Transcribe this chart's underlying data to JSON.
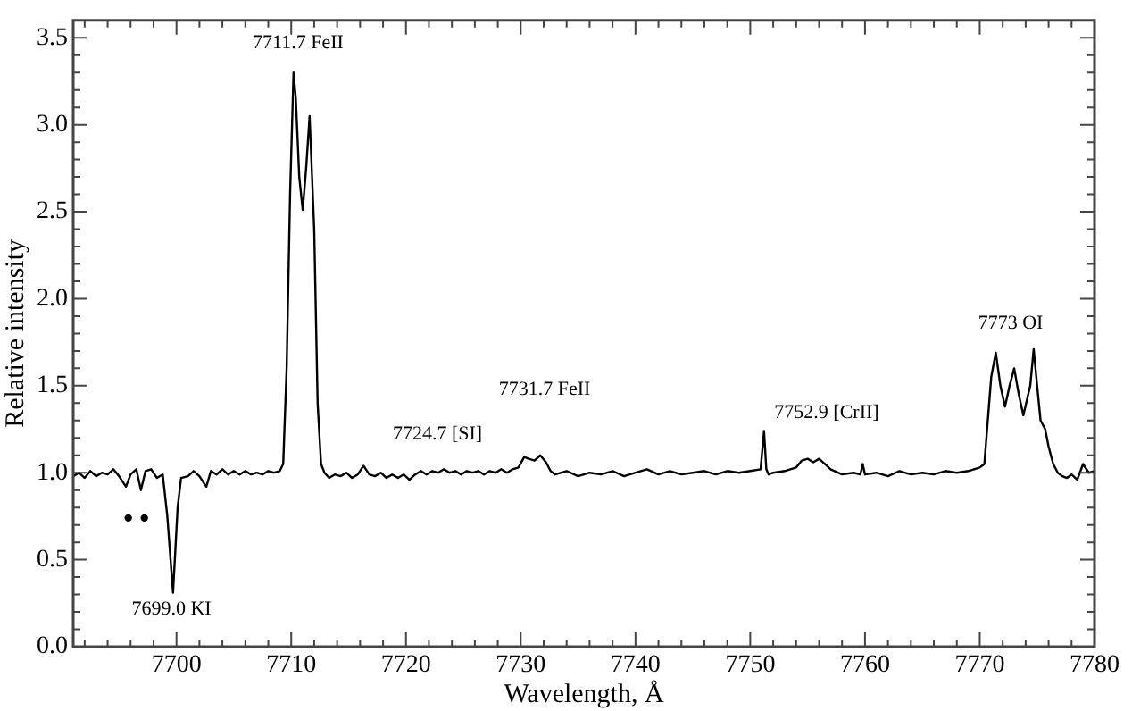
{
  "chart_data": {
    "type": "line",
    "xlabel": "Wavelength, Å",
    "ylabel": "Relative intensity",
    "xlim": [
      7691,
      7780
    ],
    "ylim": [
      0,
      3.6
    ],
    "xticks": [
      {
        "value": 7692,
        "label": null
      },
      {
        "value": 7694,
        "label": null
      },
      {
        "value": 7696,
        "label": null
      },
      {
        "value": 7698,
        "label": null
      },
      7700,
      {
        "value": 7702,
        "label": null
      },
      {
        "value": 7704,
        "label": null
      },
      {
        "value": 7706,
        "label": null
      },
      {
        "value": 7708,
        "label": null
      },
      7710,
      {
        "value": 7712,
        "label": null
      },
      {
        "value": 7714,
        "label": null
      },
      {
        "value": 7716,
        "label": null
      },
      {
        "value": 7718,
        "label": null
      },
      7720,
      {
        "value": 7722,
        "label": null
      },
      {
        "value": 7724,
        "label": null
      },
      {
        "value": 7726,
        "label": null
      },
      {
        "value": 7728,
        "label": null
      },
      7730,
      {
        "value": 7732,
        "label": null
      },
      {
        "value": 7734,
        "label": null
      },
      {
        "value": 7736,
        "label": null
      },
      {
        "value": 7738,
        "label": null
      },
      7740,
      {
        "value": 7742,
        "label": null
      },
      {
        "value": 7744,
        "label": null
      },
      {
        "value": 7746,
        "label": null
      },
      {
        "value": 7748,
        "label": null
      },
      7750,
      {
        "value": 7752,
        "label": null
      },
      {
        "value": 7754,
        "label": null
      },
      {
        "value": 7756,
        "label": null
      },
      {
        "value": 7758,
        "label": null
      },
      7760,
      {
        "value": 7762,
        "label": null
      },
      {
        "value": 7764,
        "label": null
      },
      {
        "value": 7766,
        "label": null
      },
      {
        "value": 7768,
        "label": null
      },
      7770,
      {
        "value": 7772,
        "label": null
      },
      {
        "value": 7774,
        "label": null
      },
      {
        "value": 7776,
        "label": null
      },
      {
        "value": 7778,
        "label": null
      },
      7780
    ],
    "yticks": [
      {
        "value": 0,
        "label": "0.0"
      },
      {
        "value": 0.1,
        "label": null
      },
      {
        "value": 0.2,
        "label": null
      },
      {
        "value": 0.3,
        "label": null
      },
      {
        "value": 0.4,
        "label": null
      },
      0.5,
      {
        "value": 0.6,
        "label": null
      },
      {
        "value": 0.7,
        "label": null
      },
      {
        "value": 0.8,
        "label": null
      },
      {
        "value": 0.9,
        "label": null
      },
      {
        "value": 1,
        "label": "1.0"
      },
      {
        "value": 1.1,
        "label": null
      },
      {
        "value": 1.2,
        "label": null
      },
      {
        "value": 1.3,
        "label": null
      },
      {
        "value": 1.4,
        "label": null
      },
      1.5,
      {
        "value": 1.6,
        "label": null
      },
      {
        "value": 1.7,
        "label": null
      },
      {
        "value": 1.8,
        "label": null
      },
      {
        "value": 1.9,
        "label": null
      },
      {
        "value": 2,
        "label": "2.0"
      },
      {
        "value": 2.1,
        "label": null
      },
      {
        "value": 2.2,
        "label": null
      },
      {
        "value": 2.3,
        "label": null
      },
      {
        "value": 2.4,
        "label": null
      },
      2.5,
      {
        "value": 2.6,
        "label": null
      },
      {
        "value": 2.7,
        "label": null
      },
      {
        "value": 2.8,
        "label": null
      },
      {
        "value": 2.9,
        "label": null
      },
      {
        "value": 3,
        "label": "3.0"
      },
      {
        "value": 3.1,
        "label": null
      },
      {
        "value": 3.2,
        "label": null
      },
      {
        "value": 3.3,
        "label": null
      },
      {
        "value": 3.4,
        "label": null
      },
      3.5
    ],
    "grid": false,
    "legend": false,
    "series": [
      {
        "color": "#000000",
        "marker": "none",
        "line_style": "solid",
        "x": [
          7691,
          7691.5,
          7692,
          7692.5,
          7693,
          7693.5,
          7694,
          7694.5,
          7695,
          7695.6,
          7696,
          7696.5,
          7696.9,
          7697.3,
          7697.8,
          7698.3,
          7698.8,
          7699.2,
          7699.7,
          7700.1,
          7700.4,
          7701,
          7701.5,
          7702,
          7702.6,
          7703,
          7703.5,
          7704,
          7704.5,
          7705,
          7705.5,
          7706,
          7706.5,
          7707,
          7707.5,
          7708,
          7708.5,
          7709,
          7709.3,
          7709.6,
          7709.9,
          7710.2,
          7710.4,
          7710.7,
          7711.0,
          7711.3,
          7711.6,
          7712.0,
          7712.3,
          7712.6,
          7712.9,
          7713.3,
          7713.8,
          7714.3,
          7714.8,
          7715.3,
          7715.8,
          7716.3,
          7716.8,
          7717.3,
          7717.8,
          7718.3,
          7718.8,
          7719.3,
          7719.8,
          7720.3,
          7720.8,
          7721.3,
          7721.8,
          7722.3,
          7722.8,
          7723.3,
          7723.8,
          7724.3,
          7724.8,
          7725.3,
          7725.8,
          7726.3,
          7726.8,
          7727.3,
          7727.8,
          7728.3,
          7728.8,
          7729.3,
          7729.8,
          7730.3,
          7730.7,
          7731.2,
          7731.7,
          7732.2,
          7732.6,
          7733,
          7734,
          7735,
          7736,
          7737,
          7738,
          7739,
          7740,
          7741,
          7742,
          7743,
          7744,
          7745,
          7746,
          7747,
          7748,
          7749,
          7750,
          7750.9,
          7751.2,
          7751.4,
          7751.6,
          7752,
          7753,
          7754,
          7754.5,
          7755,
          7755.5,
          7756,
          7756.5,
          7757,
          7758,
          7759,
          7759.6,
          7759.8,
          7760,
          7761,
          7762,
          7763,
          7764,
          7765,
          7766,
          7767,
          7768,
          7769,
          7770,
          7770.4,
          7770.7,
          7771.0,
          7771.4,
          7771.8,
          7772.2,
          7772.6,
          7773.0,
          7773.4,
          7773.8,
          7774.4,
          7774.7,
          7775.0,
          7775.3,
          7775.7,
          7776.0,
          7776.4,
          7776.8,
          7777.2,
          7777.6,
          7778,
          7778.5,
          7779,
          7779.5,
          7780
        ],
        "values": [
          0.98,
          1.0,
          0.97,
          1.01,
          0.98,
          1.0,
          0.99,
          1.02,
          0.98,
          0.92,
          0.99,
          1.02,
          0.9,
          1.01,
          1.02,
          0.97,
          0.99,
          0.75,
          0.31,
          0.8,
          0.97,
          0.98,
          1.01,
          0.98,
          0.92,
          1.01,
          0.99,
          1.02,
          0.99,
          1.01,
          0.99,
          1.01,
          0.99,
          1.0,
          0.99,
          1.01,
          1.0,
          1.01,
          1.05,
          1.6,
          2.6,
          3.3,
          3.15,
          2.7,
          2.51,
          2.75,
          3.05,
          2.4,
          1.4,
          1.05,
          1.0,
          0.97,
          0.99,
          0.98,
          1.0,
          0.97,
          0.99,
          1.04,
          0.99,
          0.98,
          1.0,
          0.97,
          0.99,
          0.97,
          0.99,
          0.96,
          0.99,
          1.01,
          0.99,
          1.01,
          1.0,
          1.02,
          1.0,
          1.01,
          0.99,
          1.01,
          1.0,
          1.01,
          0.99,
          1.01,
          1.0,
          1.02,
          1.0,
          1.02,
          1.03,
          1.09,
          1.08,
          1.07,
          1.1,
          1.06,
          1.01,
          0.99,
          1.01,
          0.98,
          1.0,
          0.99,
          1.01,
          0.98,
          1.0,
          1.02,
          0.99,
          1.01,
          0.99,
          1.0,
          1.01,
          0.99,
          1.01,
          1.0,
          1.01,
          1.02,
          1.24,
          1.02,
          0.99,
          1.0,
          1.01,
          1.03,
          1.07,
          1.08,
          1.06,
          1.08,
          1.05,
          1.02,
          0.99,
          1.0,
          0.99,
          1.05,
          0.99,
          1.0,
          0.98,
          1.01,
          0.99,
          1.0,
          0.99,
          1.01,
          1.0,
          1.01,
          1.03,
          1.05,
          1.3,
          1.55,
          1.69,
          1.5,
          1.38,
          1.5,
          1.6,
          1.45,
          1.33,
          1.5,
          1.71,
          1.5,
          1.3,
          1.25,
          1.15,
          1.05,
          1.0,
          0.98,
          0.97,
          0.99,
          0.96,
          1.05,
          1.0,
          1.01
        ]
      },
      {
        "type": "scatter",
        "color": "#000000",
        "marker": "circle",
        "x": [
          7695.8,
          7697.2
        ],
        "values": [
          0.74,
          0.74
        ]
      }
    ],
    "annotations": [
      "7711.7 FeII",
      "7699.0 KI",
      "7724.7 [SI]",
      "7731.7 FeII",
      "7752.9 [CrII]",
      "7773 OI"
    ]
  }
}
